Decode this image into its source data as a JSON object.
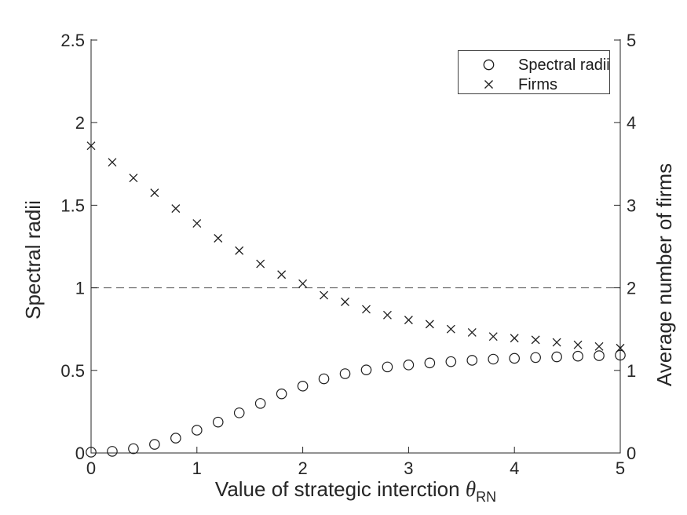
{
  "figure": {
    "background": "#ffffff",
    "axis_color": "#262626",
    "marker_color": "#1f1f1f",
    "reference_line_color": "#555555"
  },
  "chart_data": {
    "type": "scatter",
    "title": "",
    "xlabel": "Value of strategic interction θ_RN",
    "xlabel_parts": {
      "prefix": "Value of strategic interction ",
      "symbol": "θ",
      "subscript": "RN"
    },
    "ylabel_left": "Spectral radii",
    "ylabel_right": "Average number of firms",
    "xlim": [
      0,
      5
    ],
    "ylim_left": [
      0,
      2.5
    ],
    "ylim_right": [
      0,
      5
    ],
    "xticks": [
      "0",
      "1",
      "2",
      "3",
      "4",
      "5"
    ],
    "yticks_left": [
      "0",
      "0.5",
      "1",
      "1.5",
      "2",
      "2.5"
    ],
    "yticks_right": [
      "0",
      "1",
      "2",
      "3",
      "4",
      "5"
    ],
    "grid": false,
    "legend": {
      "position": "top-right",
      "items": [
        {
          "marker": "circle",
          "label": "Spectral radii"
        },
        {
          "marker": "x",
          "label": "Firms"
        }
      ]
    },
    "reference_line": {
      "axis": "left",
      "value": 1,
      "style": "dashed"
    },
    "x": [
      0,
      0.2,
      0.4,
      0.6,
      0.8,
      1.0,
      1.2,
      1.4,
      1.6,
      1.8,
      2.0,
      2.2,
      2.4,
      2.6,
      2.8,
      3.0,
      3.2,
      3.4,
      3.6,
      3.8,
      4.0,
      4.2,
      4.4,
      4.6,
      4.8,
      5.0
    ],
    "series": [
      {
        "name": "Spectral radii",
        "marker": "circle",
        "axis": "left",
        "values": [
          0.005,
          0.01,
          0.026,
          0.052,
          0.09,
          0.138,
          0.187,
          0.243,
          0.3,
          0.358,
          0.405,
          0.449,
          0.48,
          0.503,
          0.521,
          0.533,
          0.545,
          0.553,
          0.561,
          0.568,
          0.573,
          0.578,
          0.582,
          0.586,
          0.589,
          0.592
        ]
      },
      {
        "name": "Firms",
        "marker": "x",
        "axis": "right",
        "values": [
          3.72,
          3.52,
          3.33,
          3.15,
          2.96,
          2.78,
          2.6,
          2.45,
          2.29,
          2.16,
          2.05,
          1.91,
          1.83,
          1.74,
          1.67,
          1.61,
          1.56,
          1.5,
          1.46,
          1.41,
          1.39,
          1.37,
          1.34,
          1.31,
          1.29,
          1.27
        ]
      }
    ]
  }
}
